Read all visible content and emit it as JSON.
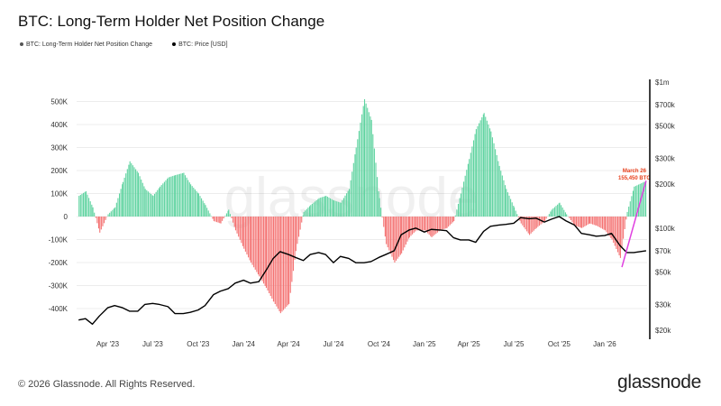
{
  "chart_data": {
    "type": "bar+line",
    "title": "BTC: Long-Term Holder Net Position Change",
    "legend": [
      {
        "name": "BTC: Long-Term Holder Net Position Change",
        "color": "#555555"
      },
      {
        "name": "BTC: Price [USD]",
        "color": "#000000"
      }
    ],
    "legend_placement": "top-left",
    "grid": true,
    "colors": {
      "positive": "#5fd3a0",
      "negative": "#f47272",
      "price": "#000000",
      "trend": "#e040e0",
      "annotation": "#e8401c"
    },
    "left_axis": {
      "ticks": [
        500000,
        400000,
        300000,
        200000,
        100000,
        0,
        -100000,
        -200000,
        -300000,
        -400000
      ],
      "tick_labels": [
        "500K",
        "400K",
        "300K",
        "200K",
        "100K",
        "0",
        "-100K",
        "-200K",
        "-300K",
        "-400K"
      ],
      "ylim": [
        -480000,
        560000
      ]
    },
    "right_axis": {
      "scale": "log",
      "ticks": [
        1000000,
        700000,
        500000,
        300000,
        200000,
        100000,
        70000,
        50000,
        30000,
        20000
      ],
      "tick_labels": [
        "$1m",
        "$700k",
        "$500k",
        "$300k",
        "$200k",
        "$100k",
        "$70k",
        "$50k",
        "$30k",
        "$20k"
      ],
      "ylim": [
        20000,
        1000000
      ]
    },
    "x_ticks": [
      {
        "date": "2023-04-01",
        "label": "Apr '23"
      },
      {
        "date": "2023-07-01",
        "label": "Jul '23"
      },
      {
        "date": "2023-10-01",
        "label": "Oct '23"
      },
      {
        "date": "2024-01-01",
        "label": "Jan '24"
      },
      {
        "date": "2024-04-01",
        "label": "Apr '24"
      },
      {
        "date": "2024-07-01",
        "label": "Jul '24"
      },
      {
        "date": "2024-10-01",
        "label": "Oct '24"
      },
      {
        "date": "2025-01-01",
        "label": "Jan '25"
      },
      {
        "date": "2025-04-01",
        "label": "Apr '25"
      },
      {
        "date": "2025-07-01",
        "label": "Jul '25"
      },
      {
        "date": "2025-10-01",
        "label": "Oct '25"
      },
      {
        "date": "2026-01-01",
        "label": "Jan '26"
      }
    ],
    "xlim": [
      "2023-01-28",
      "2026-03-28"
    ],
    "dates": [
      "2023-02-01",
      "2023-02-15",
      "2023-03-01",
      "2023-03-15",
      "2023-04-01",
      "2023-04-15",
      "2023-05-01",
      "2023-05-15",
      "2023-06-01",
      "2023-06-15",
      "2023-07-01",
      "2023-07-15",
      "2023-08-01",
      "2023-08-15",
      "2023-09-01",
      "2023-09-15",
      "2023-10-01",
      "2023-10-15",
      "2023-11-01",
      "2023-11-15",
      "2023-12-01",
      "2023-12-15",
      "2024-01-01",
      "2024-01-15",
      "2024-02-01",
      "2024-02-15",
      "2024-03-01",
      "2024-03-15",
      "2024-04-01",
      "2024-04-15",
      "2024-05-01",
      "2024-05-15",
      "2024-06-01",
      "2024-06-15",
      "2024-07-01",
      "2024-07-15",
      "2024-08-01",
      "2024-08-15",
      "2024-09-01",
      "2024-09-15",
      "2024-10-01",
      "2024-10-15",
      "2024-11-01",
      "2024-11-15",
      "2024-12-01",
      "2024-12-15",
      "2025-01-01",
      "2025-01-15",
      "2025-02-01",
      "2025-02-15",
      "2025-03-01",
      "2025-03-15",
      "2025-04-01",
      "2025-04-15",
      "2025-05-01",
      "2025-05-15",
      "2025-06-01",
      "2025-06-15",
      "2025-07-01",
      "2025-07-15",
      "2025-08-01",
      "2025-08-15",
      "2025-09-01",
      "2025-09-15",
      "2025-10-01",
      "2025-10-15",
      "2025-11-01",
      "2025-11-15",
      "2025-12-01",
      "2025-12-15",
      "2026-01-01",
      "2026-01-15",
      "2026-02-01",
      "2026-02-15",
      "2026-03-01",
      "2026-03-26"
    ],
    "series": [
      {
        "name": "BTC: Long-Term Holder Net Position Change",
        "axis": "left",
        "values": [
          90000,
          110000,
          40000,
          -70000,
          10000,
          40000,
          150000,
          240000,
          190000,
          120000,
          90000,
          130000,
          170000,
          180000,
          190000,
          140000,
          100000,
          50000,
          -20000,
          -30000,
          30000,
          -60000,
          -140000,
          -200000,
          -260000,
          -310000,
          -370000,
          -420000,
          -380000,
          -150000,
          20000,
          50000,
          80000,
          90000,
          70000,
          60000,
          120000,
          300000,
          510000,
          420000,
          80000,
          -120000,
          -200000,
          -160000,
          -90000,
          -60000,
          -60000,
          -90000,
          -60000,
          -50000,
          -20000,
          100000,
          250000,
          380000,
          450000,
          370000,
          220000,
          120000,
          40000,
          -30000,
          -80000,
          -50000,
          -20000,
          30000,
          60000,
          10000,
          -40000,
          -50000,
          -30000,
          -40000,
          -60000,
          -100000,
          -180000,
          20000,
          130000,
          155450
        ]
      },
      {
        "name": "BTC: Price [USD]",
        "axis": "right",
        "values": [
          23500,
          24000,
          22000,
          25000,
          28500,
          29500,
          28500,
          27000,
          27000,
          30000,
          30500,
          30000,
          29000,
          26000,
          26000,
          26500,
          27500,
          29500,
          35000,
          37000,
          38500,
          42000,
          44000,
          42000,
          43000,
          51000,
          62000,
          69000,
          66000,
          63000,
          60000,
          66000,
          68000,
          66000,
          58000,
          64000,
          62000,
          58000,
          58000,
          59000,
          63000,
          66000,
          70000,
          90000,
          97000,
          100000,
          94000,
          98000,
          97000,
          96000,
          86000,
          83000,
          83000,
          80000,
          95000,
          103000,
          105000,
          106000,
          108000,
          118000,
          116000,
          117000,
          110000,
          115000,
          120000,
          112000,
          105000,
          92000,
          90000,
          88000,
          89000,
          92000,
          76000,
          68000,
          68000,
          70000
        ]
      }
    ],
    "annotation": {
      "date": "2026-03-26",
      "line1": "March 26",
      "line2": "155,450 BTC"
    },
    "trend_line": {
      "from": {
        "date": "2026-02-05",
        "value": -220000
      },
      "to": {
        "date": "2026-03-26",
        "value": 155450
      }
    }
  },
  "watermark": "glassnode",
  "footer": {
    "copyright": "© 2026 Glassnode. All Rights Reserved.",
    "logo": "glassnode"
  }
}
